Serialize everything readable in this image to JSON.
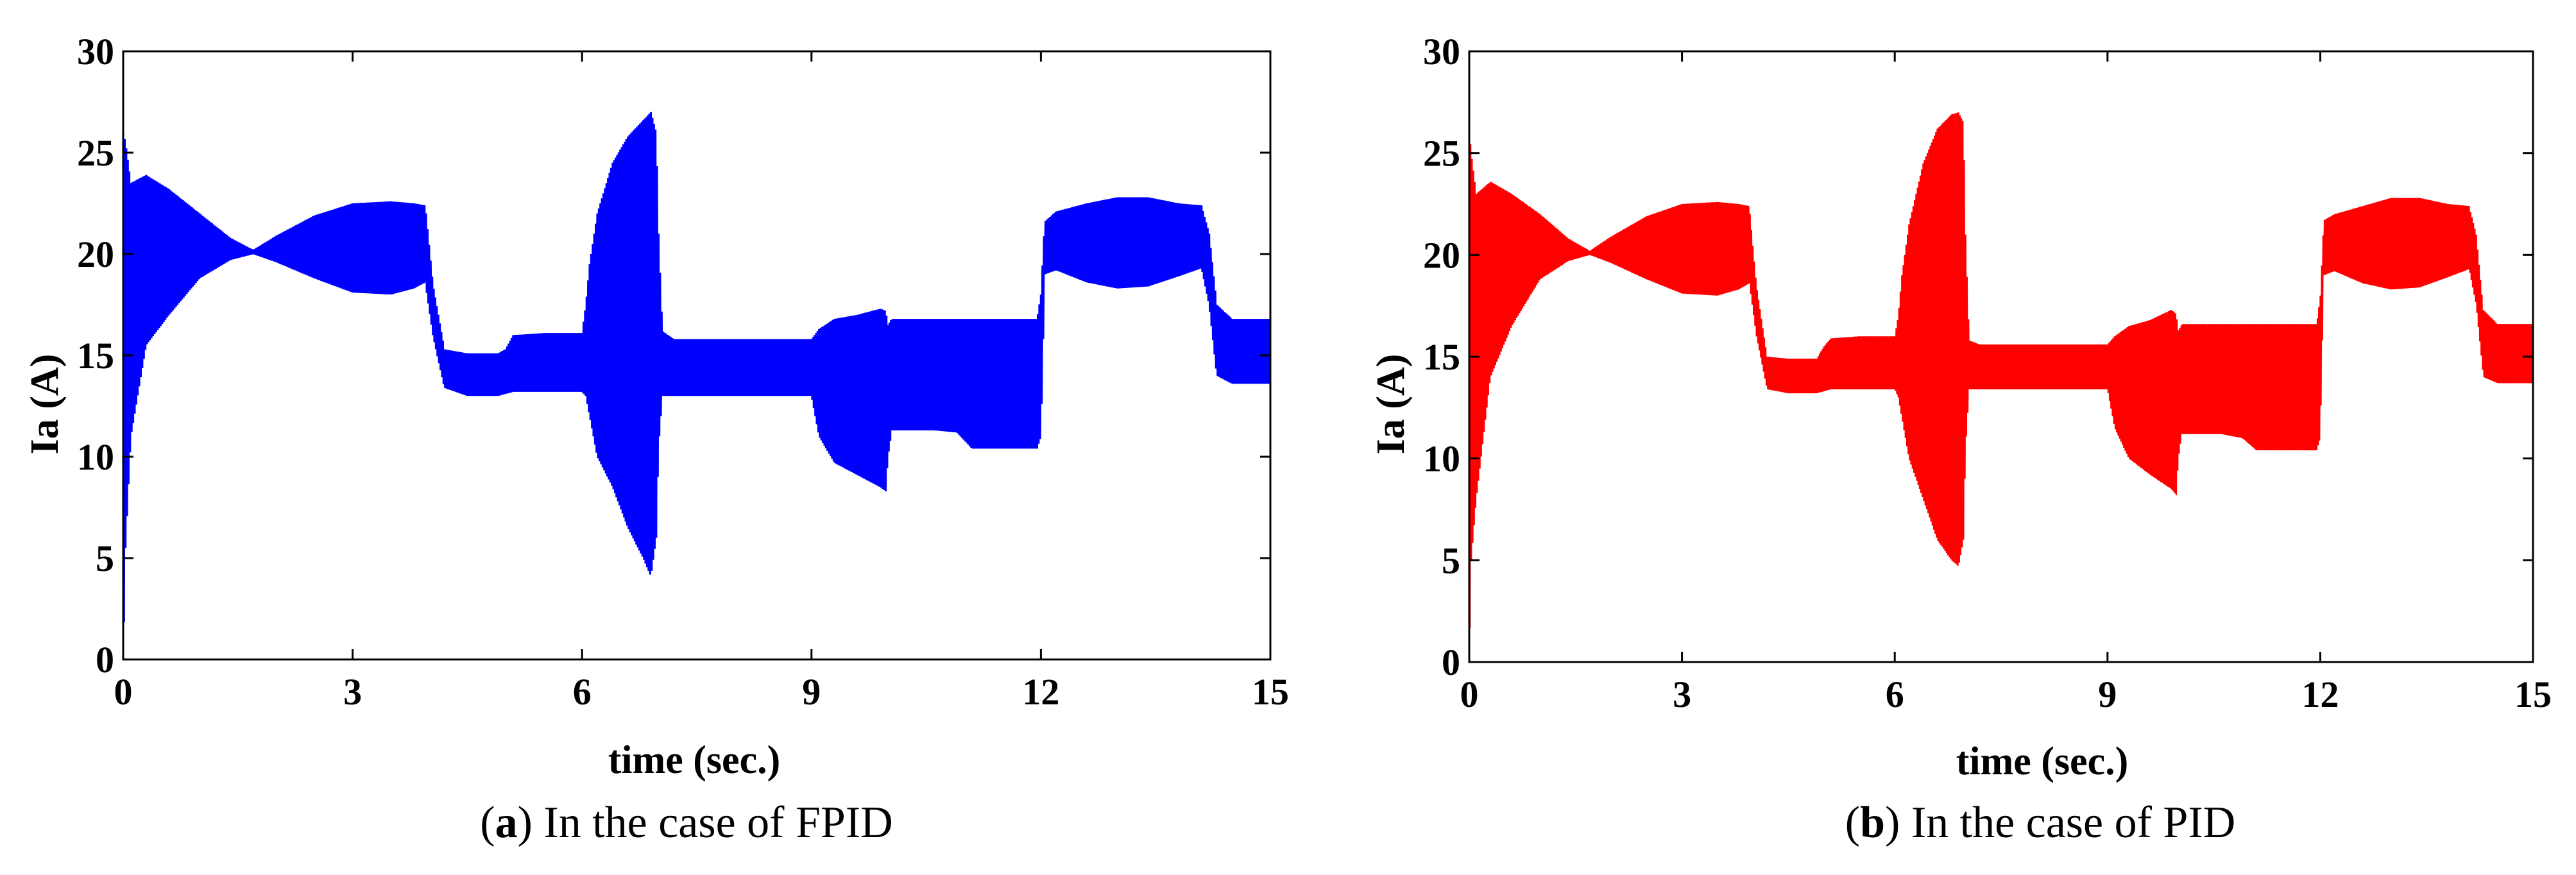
{
  "chart_data": [
    {
      "type": "line",
      "panel_letter": "a",
      "caption_text": " In the case of FPID",
      "xlabel": "time (sec.)",
      "ylabel": "Ia (A)",
      "xlim": [
        0,
        15
      ],
      "ylim": [
        0,
        30
      ],
      "xticks": [
        "0",
        "3",
        "6",
        "9",
        "12",
        "15"
      ],
      "yticks": [
        "0",
        "5",
        "10",
        "15",
        "20",
        "25",
        "30"
      ],
      "grid": false,
      "color": "#0000ff",
      "envelope": {
        "t": [
          0,
          0.03,
          0.1,
          0.3,
          0.6,
          1.0,
          1.4,
          1.7,
          2.0,
          2.5,
          3.0,
          3.5,
          3.8,
          3.95,
          4.05,
          4.2,
          4.5,
          4.9,
          5.0,
          5.1,
          5.5,
          6.0,
          6.05,
          6.1,
          6.2,
          6.4,
          6.6,
          6.8,
          6.9,
          6.97,
          7.0,
          7.05,
          7.2,
          7.5,
          8.0,
          8.5,
          9.0,
          9.1,
          9.3,
          9.6,
          9.9,
          9.97,
          10.0,
          10.05,
          10.3,
          10.6,
          10.9,
          11.1,
          11.5,
          11.95,
          12.0,
          12.05,
          12.2,
          12.6,
          13.0,
          13.4,
          13.8,
          14.1,
          14.2,
          14.3,
          14.5,
          14.7,
          15.0
        ],
        "upper": [
          26,
          25.5,
          23.5,
          23.9,
          23.2,
          22.0,
          20.8,
          20.2,
          20.9,
          21.9,
          22.5,
          22.6,
          22.5,
          22.4,
          18.5,
          15.3,
          15.1,
          15.1,
          15.3,
          16.0,
          16.1,
          16.1,
          17.5,
          19.5,
          22.0,
          24.5,
          25.8,
          26.6,
          27.0,
          26.0,
          21.0,
          16.2,
          15.8,
          15.8,
          15.8,
          15.8,
          15.8,
          16.3,
          16.8,
          17.0,
          17.3,
          17.2,
          16.5,
          16.8,
          16.8,
          16.8,
          16.8,
          16.8,
          16.8,
          16.8,
          18.0,
          21.6,
          22.1,
          22.5,
          22.8,
          22.8,
          22.5,
          22.4,
          21.0,
          17.5,
          16.8,
          16.8,
          16.8
        ],
        "lower": [
          0,
          5.5,
          11.0,
          15.5,
          17.0,
          18.8,
          19.7,
          20.0,
          19.6,
          18.8,
          18.1,
          18.0,
          18.3,
          18.6,
          16.0,
          13.4,
          13.0,
          13.0,
          13.1,
          13.2,
          13.2,
          13.2,
          13.0,
          12.0,
          10.0,
          8.5,
          6.5,
          5.0,
          4.1,
          6.0,
          10.5,
          13.0,
          13.0,
          13.0,
          13.0,
          13.0,
          13.0,
          11.0,
          9.7,
          9.1,
          8.5,
          8.3,
          10.0,
          11.3,
          11.3,
          11.3,
          11.2,
          10.4,
          10.4,
          10.4,
          11.0,
          19.0,
          19.2,
          18.6,
          18.3,
          18.4,
          18.9,
          19.3,
          17.5,
          14.0,
          13.6,
          13.6,
          13.6
        ]
      }
    },
    {
      "type": "line",
      "panel_letter": "b",
      "caption_text": " In the case of PID",
      "xlabel": "time (sec.)",
      "ylabel": "Ia (A)",
      "xlim": [
        0,
        15
      ],
      "ylim": [
        0,
        30
      ],
      "xticks": [
        "0",
        "3",
        "6",
        "9",
        "12",
        "15"
      ],
      "yticks": [
        "0",
        "5",
        "10",
        "15",
        "20",
        "25",
        "30"
      ],
      "grid": false,
      "color": "#ff0000",
      "envelope": {
        "t": [
          0,
          0.03,
          0.1,
          0.3,
          0.6,
          1.0,
          1.4,
          1.7,
          2.0,
          2.5,
          3.0,
          3.5,
          3.8,
          3.95,
          4.05,
          4.2,
          4.5,
          4.9,
          5.0,
          5.1,
          5.5,
          6.0,
          6.05,
          6.1,
          6.2,
          6.4,
          6.6,
          6.8,
          6.9,
          6.97,
          7.0,
          7.05,
          7.2,
          7.5,
          8.0,
          8.5,
          9.0,
          9.1,
          9.3,
          9.6,
          9.9,
          9.97,
          10.0,
          10.05,
          10.3,
          10.6,
          10.9,
          11.1,
          11.5,
          11.95,
          12.0,
          12.05,
          12.2,
          12.6,
          13.0,
          13.4,
          13.8,
          14.1,
          14.2,
          14.3,
          14.5,
          14.7,
          15.0
        ],
        "upper": [
          26.3,
          25.0,
          23.0,
          23.6,
          23.0,
          22.0,
          20.8,
          20.2,
          20.9,
          21.9,
          22.5,
          22.6,
          22.5,
          22.4,
          18.5,
          15.0,
          14.9,
          14.9,
          15.5,
          15.9,
          16.0,
          16.0,
          17.0,
          19.0,
          21.5,
          24.5,
          26.2,
          26.9,
          27.0,
          26.5,
          21.0,
          15.8,
          15.6,
          15.6,
          15.6,
          15.6,
          15.6,
          16.0,
          16.5,
          16.8,
          17.3,
          17.1,
          16.3,
          16.6,
          16.6,
          16.6,
          16.6,
          16.6,
          16.6,
          16.6,
          18.0,
          21.7,
          22.0,
          22.4,
          22.8,
          22.8,
          22.5,
          22.4,
          21.0,
          17.3,
          16.6,
          16.6,
          16.6
        ],
        "lower": [
          0,
          5.0,
          8.0,
          14.0,
          16.5,
          18.8,
          19.7,
          20.0,
          19.6,
          18.8,
          18.1,
          18.0,
          18.3,
          18.6,
          16.0,
          13.4,
          13.2,
          13.2,
          13.3,
          13.4,
          13.4,
          13.4,
          13.0,
          12.0,
          10.0,
          8.0,
          6.0,
          5.0,
          4.7,
          6.0,
          10.5,
          13.4,
          13.4,
          13.4,
          13.4,
          13.4,
          13.4,
          11.5,
          10.0,
          9.2,
          8.5,
          8.2,
          10.0,
          11.2,
          11.2,
          11.2,
          11.0,
          10.4,
          10.4,
          10.4,
          11.0,
          19.0,
          19.2,
          18.6,
          18.3,
          18.4,
          18.9,
          19.3,
          17.5,
          14.0,
          13.7,
          13.7,
          13.7
        ]
      }
    }
  ]
}
